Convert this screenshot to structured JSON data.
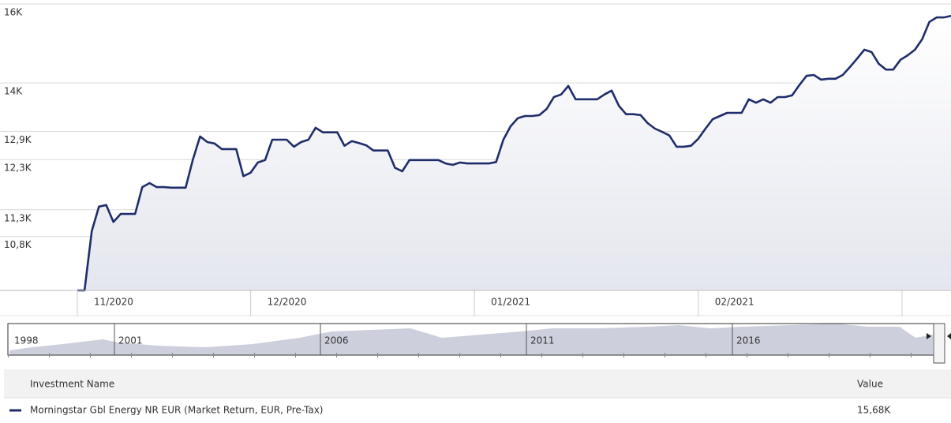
{
  "chart_data": {
    "type": "line",
    "ylog": true,
    "ylim": [
      9860,
      16000
    ],
    "yticks": [
      {
        "value": 16000,
        "label": "16K"
      },
      {
        "value": 14000,
        "label": "14K"
      },
      {
        "value": 12900,
        "label": "12,9K"
      },
      {
        "value": 12300,
        "label": "12,3K"
      },
      {
        "value": 11300,
        "label": "11,3K"
      },
      {
        "value": 10800,
        "label": "10,8K"
      }
    ],
    "grid": true,
    "categories": [
      "11/2020",
      null,
      null,
      null,
      null,
      null,
      null,
      null,
      null,
      null,
      null,
      null,
      null,
      null,
      null,
      null,
      null,
      null,
      null,
      null,
      null,
      null,
      null,
      null,
      "12/2020",
      null,
      null,
      null,
      null,
      null,
      null,
      null,
      null,
      null,
      null,
      null,
      null,
      null,
      null,
      null,
      null,
      null,
      null,
      null,
      null,
      null,
      null,
      null,
      null,
      null,
      null,
      null,
      null,
      null,
      null,
      "01/2021",
      null,
      null,
      null,
      null,
      null,
      null,
      null,
      null,
      null,
      null,
      null,
      null,
      null,
      null,
      null,
      null,
      null,
      null,
      null,
      null,
      null,
      null,
      null,
      null,
      null,
      null,
      null,
      null,
      null,
      null,
      "02/2021",
      null,
      null,
      null,
      null,
      null,
      null,
      null,
      null,
      null,
      null,
      null,
      null,
      null,
      null,
      null,
      null,
      null,
      null,
      null,
      null,
      null,
      null,
      null,
      null,
      null,
      null,
      null,
      null,
      null,
      null,
      null,
      null,
      null,
      null,
      null
    ],
    "series": [
      {
        "name": "Morningstar Gbl Energy NR EUR (Market Return, EUR, Pre-Tax)",
        "color": "#1f2d6b",
        "values": [
          9860,
          9860,
          10900,
          11360,
          11390,
          11070,
          11220,
          11220,
          11220,
          11740,
          11820,
          11740,
          11740,
          11730,
          11730,
          11730,
          12300,
          12790,
          12670,
          12640,
          12520,
          12520,
          12520,
          11960,
          12030,
          12240,
          12290,
          12720,
          12720,
          12720,
          12570,
          12670,
          12720,
          12980,
          12880,
          12880,
          12880,
          12590,
          12690,
          12650,
          12600,
          12490,
          12490,
          12490,
          12130,
          12060,
          12290,
          12290,
          12290,
          12290,
          12290,
          12220,
          12190,
          12240,
          12220,
          12220,
          12220,
          12220,
          12250,
          12720,
          13010,
          13190,
          13240,
          13240,
          13260,
          13400,
          13670,
          13730,
          13930,
          13620,
          13620,
          13620,
          13620,
          13730,
          13820,
          13470,
          13280,
          13280,
          13260,
          13080,
          12960,
          12890,
          12810,
          12570,
          12570,
          12590,
          12740,
          12960,
          13170,
          13240,
          13310,
          13310,
          13310,
          13620,
          13540,
          13620,
          13540,
          13670,
          13670,
          13710,
          13950,
          14170,
          14190,
          14080,
          14100,
          14100,
          14190,
          14380,
          14590,
          14810,
          14750,
          14460,
          14320,
          14320,
          14560,
          14670,
          14810,
          15070,
          15520,
          15640,
          15640,
          15680
        ],
        "latest_label": "15,68K"
      }
    ],
    "navigator_labels": [
      "1998",
      "2001",
      "2006",
      "2011",
      "2016"
    ],
    "table_headers": [
      "Investment Name",
      "Value"
    ]
  }
}
